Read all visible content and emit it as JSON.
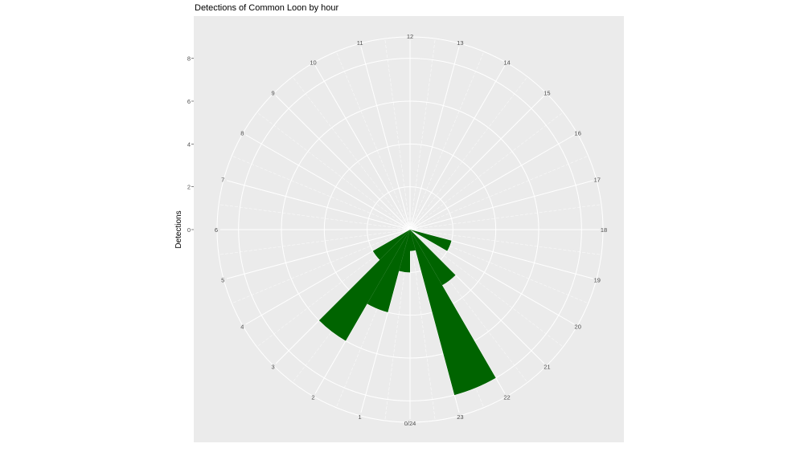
{
  "chart_data": {
    "type": "bar",
    "coord": "polar",
    "title": "Detections of Common Loon by hour",
    "xlabel": "",
    "ylabel": "Detections",
    "theta_labels": [
      "0/24",
      "1",
      "2",
      "3",
      "4",
      "5",
      "6",
      "7",
      "8",
      "9",
      "10",
      "11",
      "12",
      "13",
      "14",
      "15",
      "16",
      "17",
      "18",
      "19",
      "20",
      "21",
      "22",
      "23"
    ],
    "theta_range": [
      0,
      24
    ],
    "y_ticks": [
      "0",
      "2",
      "4",
      "6",
      "8"
    ],
    "ylim": [
      0,
      9
    ],
    "grid": true,
    "bins": [
      {
        "hour": 0,
        "value": 2
      },
      {
        "hour": 1,
        "value": 4
      },
      {
        "hour": 2,
        "value": 6
      },
      {
        "hour": 3,
        "value": 2
      },
      {
        "hour": 19,
        "value": 2
      },
      {
        "hour": 21,
        "value": 3
      },
      {
        "hour": 22,
        "value": 8
      },
      {
        "hour": 23,
        "value": 1
      }
    ],
    "bar_color": "#006400",
    "panel_color": "#EBEBEB"
  }
}
